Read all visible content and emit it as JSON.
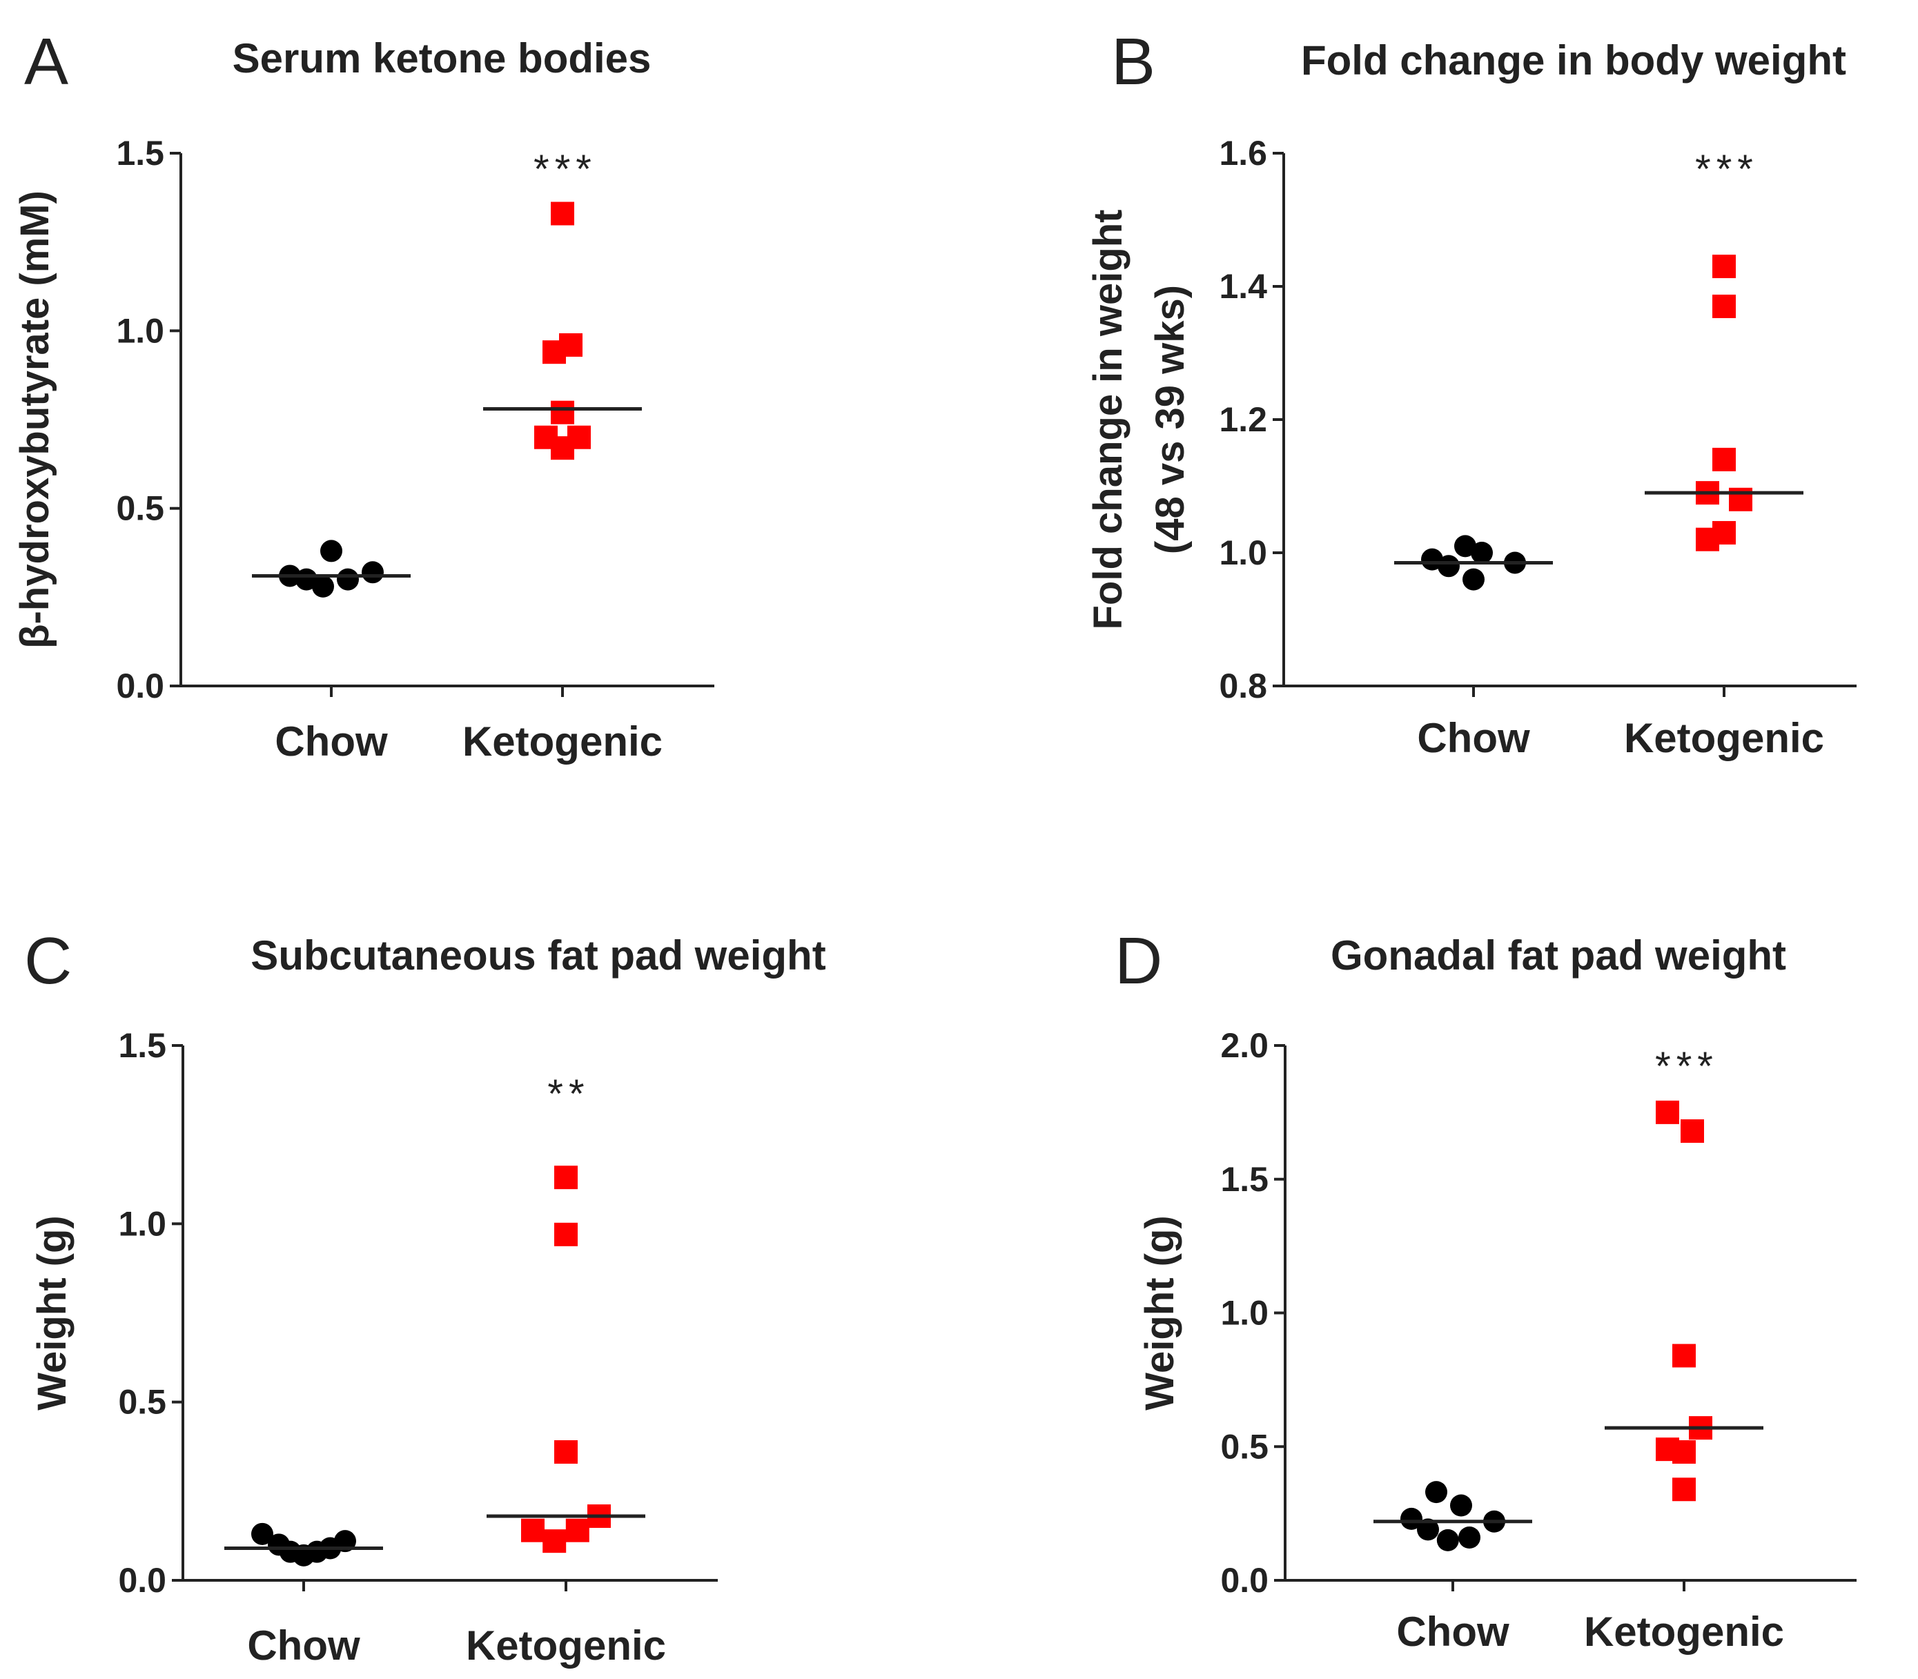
{
  "chart_data": [
    {
      "type": "scatter",
      "panel": "A",
      "title": "Serum ketone bodies",
      "ylabel": "β-hydroxybutyrate (mM)",
      "ylabel2": "",
      "ylim": [
        0,
        1.5
      ],
      "yticks": [
        0.0,
        0.5,
        1.0,
        1.5
      ],
      "ytick_labels": [
        "0.0",
        "0.5",
        "1.0",
        "1.5"
      ],
      "categories": [
        "Chow",
        "Ketogenic"
      ],
      "significance": "***",
      "series": [
        {
          "name": "Chow",
          "marker": "circle",
          "color": "#000000",
          "values": [
            0.31,
            0.3,
            0.38,
            0.28,
            0.3,
            0.32
          ],
          "offsets": [
            -2.5,
            -1.5,
            0,
            -0.5,
            1,
            2.5
          ],
          "median": 0.31
        },
        {
          "name": "Ketogenic",
          "marker": "square",
          "color": "#ff0000",
          "values": [
            1.33,
            0.94,
            0.96,
            0.77,
            0.7,
            0.67,
            0.7
          ],
          "offsets": [
            0,
            -0.5,
            0.5,
            0,
            -1,
            0,
            1
          ],
          "median": 0.78
        }
      ]
    },
    {
      "type": "scatter",
      "panel": "B",
      "title": "Fold change in body weight",
      "ylabel": "Fold change in weight",
      "ylabel2": "(48 vs 39 wks)",
      "ylim": [
        0.8,
        1.6
      ],
      "yticks": [
        0.8,
        1.0,
        1.2,
        1.4,
        1.6
      ],
      "ytick_labels": [
        "0.8",
        "1.0",
        "1.2",
        "1.4",
        "1.6"
      ],
      "categories": [
        "Chow",
        "Ketogenic"
      ],
      "significance": "***",
      "series": [
        {
          "name": "Chow",
          "marker": "circle",
          "color": "#000000",
          "values": [
            0.99,
            0.98,
            1.01,
            0.96,
            1.0,
            0.985
          ],
          "offsets": [
            -2.5,
            -1.5,
            -0.5,
            0,
            0.5,
            2.5
          ],
          "median": 0.985
        },
        {
          "name": "Ketogenic",
          "marker": "square",
          "color": "#ff0000",
          "values": [
            1.43,
            1.37,
            1.14,
            1.09,
            1.08,
            1.03,
            1.02
          ],
          "offsets": [
            0,
            0,
            0,
            -1,
            1,
            0,
            -1
          ],
          "median": 1.09
        }
      ]
    },
    {
      "type": "scatter",
      "panel": "C",
      "title": "Subcutaneous fat pad weight",
      "ylabel": "Weight (g)",
      "ylabel2": "",
      "ylim": [
        0,
        1.5
      ],
      "yticks": [
        0.0,
        0.5,
        1.0,
        1.5
      ],
      "ytick_labels": [
        "0.0",
        "0.5",
        "1.0",
        "1.5"
      ],
      "categories": [
        "Chow",
        "Ketogenic"
      ],
      "significance": "**",
      "series": [
        {
          "name": "Chow",
          "marker": "circle",
          "color": "#000000",
          "values": [
            0.13,
            0.1,
            0.08,
            0.07,
            0.08,
            0.09,
            0.11
          ],
          "offsets": [
            -2.5,
            -1.5,
            -0.8,
            0,
            0.8,
            1.6,
            2.5
          ],
          "median": 0.09
        },
        {
          "name": "Ketogenic",
          "marker": "square",
          "color": "#ff0000",
          "values": [
            1.13,
            0.97,
            0.36,
            0.14,
            0.11,
            0.14,
            0.18
          ],
          "offsets": [
            0,
            0,
            0,
            -2,
            -0.7,
            0.7,
            2
          ],
          "median": 0.18
        }
      ]
    },
    {
      "type": "scatter",
      "panel": "D",
      "title": "Gonadal fat pad weight",
      "ylabel": "Weight (g)",
      "ylabel2": "",
      "ylim": [
        0,
        2.0
      ],
      "yticks": [
        0.0,
        0.5,
        1.0,
        1.5,
        2.0
      ],
      "ytick_labels": [
        "0.0",
        "0.5",
        "1.0",
        "1.5",
        "2.0"
      ],
      "categories": [
        "Chow",
        "Ketogenic"
      ],
      "significance": "***",
      "series": [
        {
          "name": "Chow",
          "marker": "circle",
          "color": "#000000",
          "values": [
            0.23,
            0.19,
            0.33,
            0.15,
            0.28,
            0.16,
            0.22
          ],
          "offsets": [
            -2.5,
            -1.5,
            -1,
            -0.3,
            0.5,
            1,
            2.5
          ],
          "median": 0.22
        },
        {
          "name": "Ketogenic",
          "marker": "square",
          "color": "#ff0000",
          "values": [
            1.75,
            1.68,
            0.84,
            0.49,
            0.48,
            0.57,
            0.34
          ],
          "offsets": [
            -1,
            0.5,
            0,
            -1,
            0,
            1,
            0
          ],
          "median": 0.57
        }
      ]
    }
  ]
}
